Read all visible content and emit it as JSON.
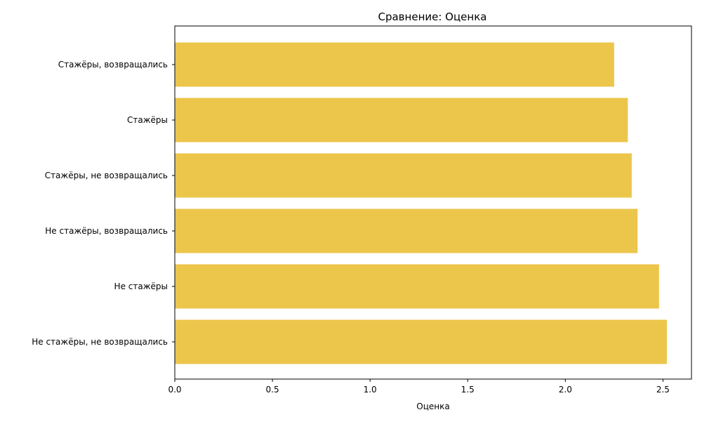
{
  "chart_data": {
    "type": "bar",
    "orientation": "horizontal",
    "title": "Сравнение: Оценка",
    "xlabel": "Оценка",
    "ylabel": "",
    "categories": [
      "Стажёры, возвращались",
      "Стажёры",
      "Стажёры, не возвращались",
      "Не стажёры, возвращались",
      "Не стажёры",
      "Не стажёры, не возвращались"
    ],
    "values": [
      2.25,
      2.32,
      2.34,
      2.37,
      2.48,
      2.52
    ],
    "xlim": [
      0,
      2.646
    ],
    "xticks": [
      0.0,
      0.5,
      1.0,
      1.5,
      2.0,
      2.5
    ],
    "xtick_labels": [
      "0.0",
      "0.5",
      "1.0",
      "1.5",
      "2.0",
      "2.5"
    ],
    "bar_color": "#ecc54b",
    "grid": false,
    "legend": "none"
  }
}
